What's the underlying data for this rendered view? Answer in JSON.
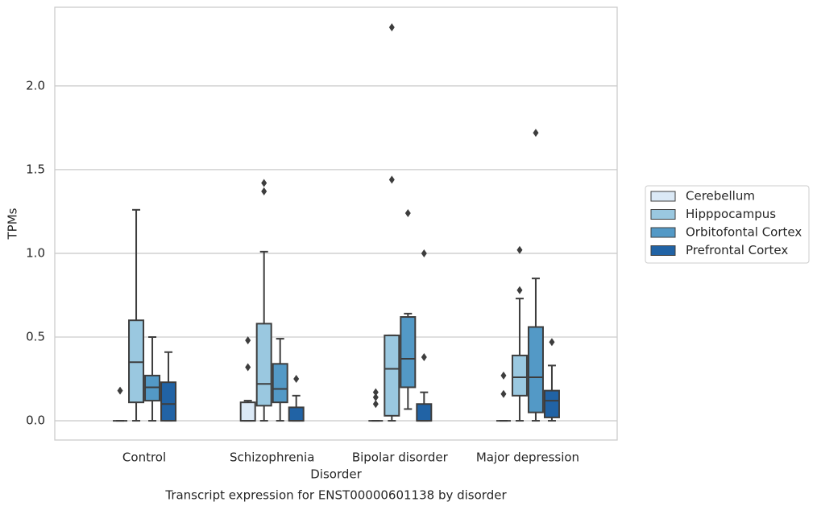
{
  "chart_data": {
    "type": "box",
    "title": "Transcript expression for ENST00000601138 by disorder",
    "x_label": "Disorder",
    "y_label": "TPMs",
    "categories": [
      "Control",
      "Schizophrenia",
      "Bipolar disorder",
      "Major depression"
    ],
    "ylim": [
      -0.115,
      2.47
    ],
    "yticks": [
      {
        "value": 0,
        "label": "0.0"
      },
      0.5,
      {
        "value": 1,
        "label": "1.0"
      },
      1.5,
      {
        "value": 2,
        "label": "2.0"
      }
    ],
    "grid": true,
    "legend": "right",
    "series": [
      {
        "name": "Cerebellum",
        "color": "#dbe9f6",
        "values": [
          {
            "min": 0,
            "q1": 0,
            "median": 0,
            "q3": 0,
            "max": 0,
            "outliers": [
              0.18
            ]
          },
          {
            "min": 0,
            "q1": 0,
            "median": 0,
            "q3": 0.11,
            "max": 0.12,
            "outliers": [
              0.48,
              0.32
            ]
          },
          {
            "min": 0,
            "q1": 0,
            "median": 0,
            "q3": 0,
            "max": 0,
            "outliers": [
              0.1,
              0.14,
              0.17
            ]
          },
          {
            "min": 0,
            "q1": 0,
            "median": 0,
            "q3": 0,
            "max": 0,
            "outliers": [
              0.16,
              0.27
            ]
          }
        ]
      },
      {
        "name": "Hipppocampus",
        "color": "#9ac8e0",
        "values": [
          {
            "min": 0,
            "q1": 0.11,
            "median": 0.35,
            "q3": 0.6,
            "max": 1.26,
            "outliers": []
          },
          {
            "min": 0,
            "q1": 0.09,
            "median": 0.22,
            "q3": 0.58,
            "max": 1.01,
            "outliers": [
              1.37,
              1.42
            ]
          },
          {
            "min": 0,
            "q1": 0.03,
            "median": 0.31,
            "q3": 0.51,
            "max": 0.51,
            "outliers": [
              1.44,
              2.35
            ]
          },
          {
            "min": 0,
            "q1": 0.15,
            "median": 0.26,
            "q3": 0.39,
            "max": 0.73,
            "outliers": [
              0.78,
              1.02
            ]
          }
        ]
      },
      {
        "name": "Orbitofontal Cortex",
        "color": "#5399c6",
        "values": [
          {
            "min": 0,
            "q1": 0.12,
            "median": 0.2,
            "q3": 0.27,
            "max": 0.5,
            "outliers": []
          },
          {
            "min": 0,
            "q1": 0.11,
            "median": 0.19,
            "q3": 0.34,
            "max": 0.49,
            "outliers": []
          },
          {
            "min": 0.07,
            "q1": 0.2,
            "median": 0.37,
            "q3": 0.62,
            "max": 0.64,
            "outliers": [
              1.24
            ]
          },
          {
            "min": 0,
            "q1": 0.05,
            "median": 0.26,
            "q3": 0.56,
            "max": 0.85,
            "outliers": [
              1.72
            ]
          }
        ]
      },
      {
        "name": "Prefrontal Cortex",
        "color": "#2163a5",
        "values": [
          {
            "min": 0,
            "q1": 0,
            "median": 0.1,
            "q3": 0.23,
            "max": 0.41,
            "outliers": []
          },
          {
            "min": 0,
            "q1": 0,
            "median": 0,
            "q3": 0.08,
            "max": 0.15,
            "outliers": [
              0.25
            ]
          },
          {
            "min": 0,
            "q1": 0,
            "median": 0,
            "q3": 0.1,
            "max": 0.17,
            "outliers": [
              0.38,
              1.0
            ]
          },
          {
            "min": 0,
            "q1": 0.02,
            "median": 0.12,
            "q3": 0.18,
            "max": 0.33,
            "outliers": [
              0.47
            ]
          }
        ]
      }
    ]
  }
}
